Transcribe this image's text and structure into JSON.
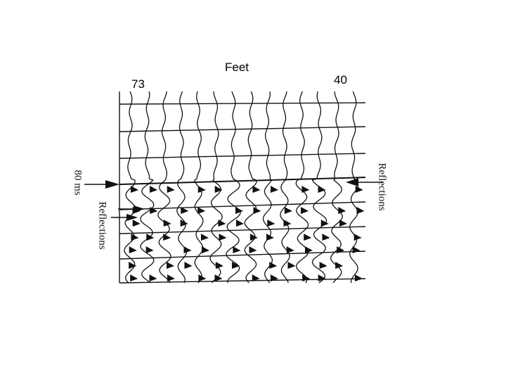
{
  "labels": {
    "title": "Feet",
    "left_distance": "73",
    "right_distance": "40",
    "time_marker": "80 ms",
    "reflections_left": "Reflections",
    "reflections_right": "Reflections"
  },
  "colors": {
    "ink": "#111111",
    "background": "#ffffff"
  }
}
